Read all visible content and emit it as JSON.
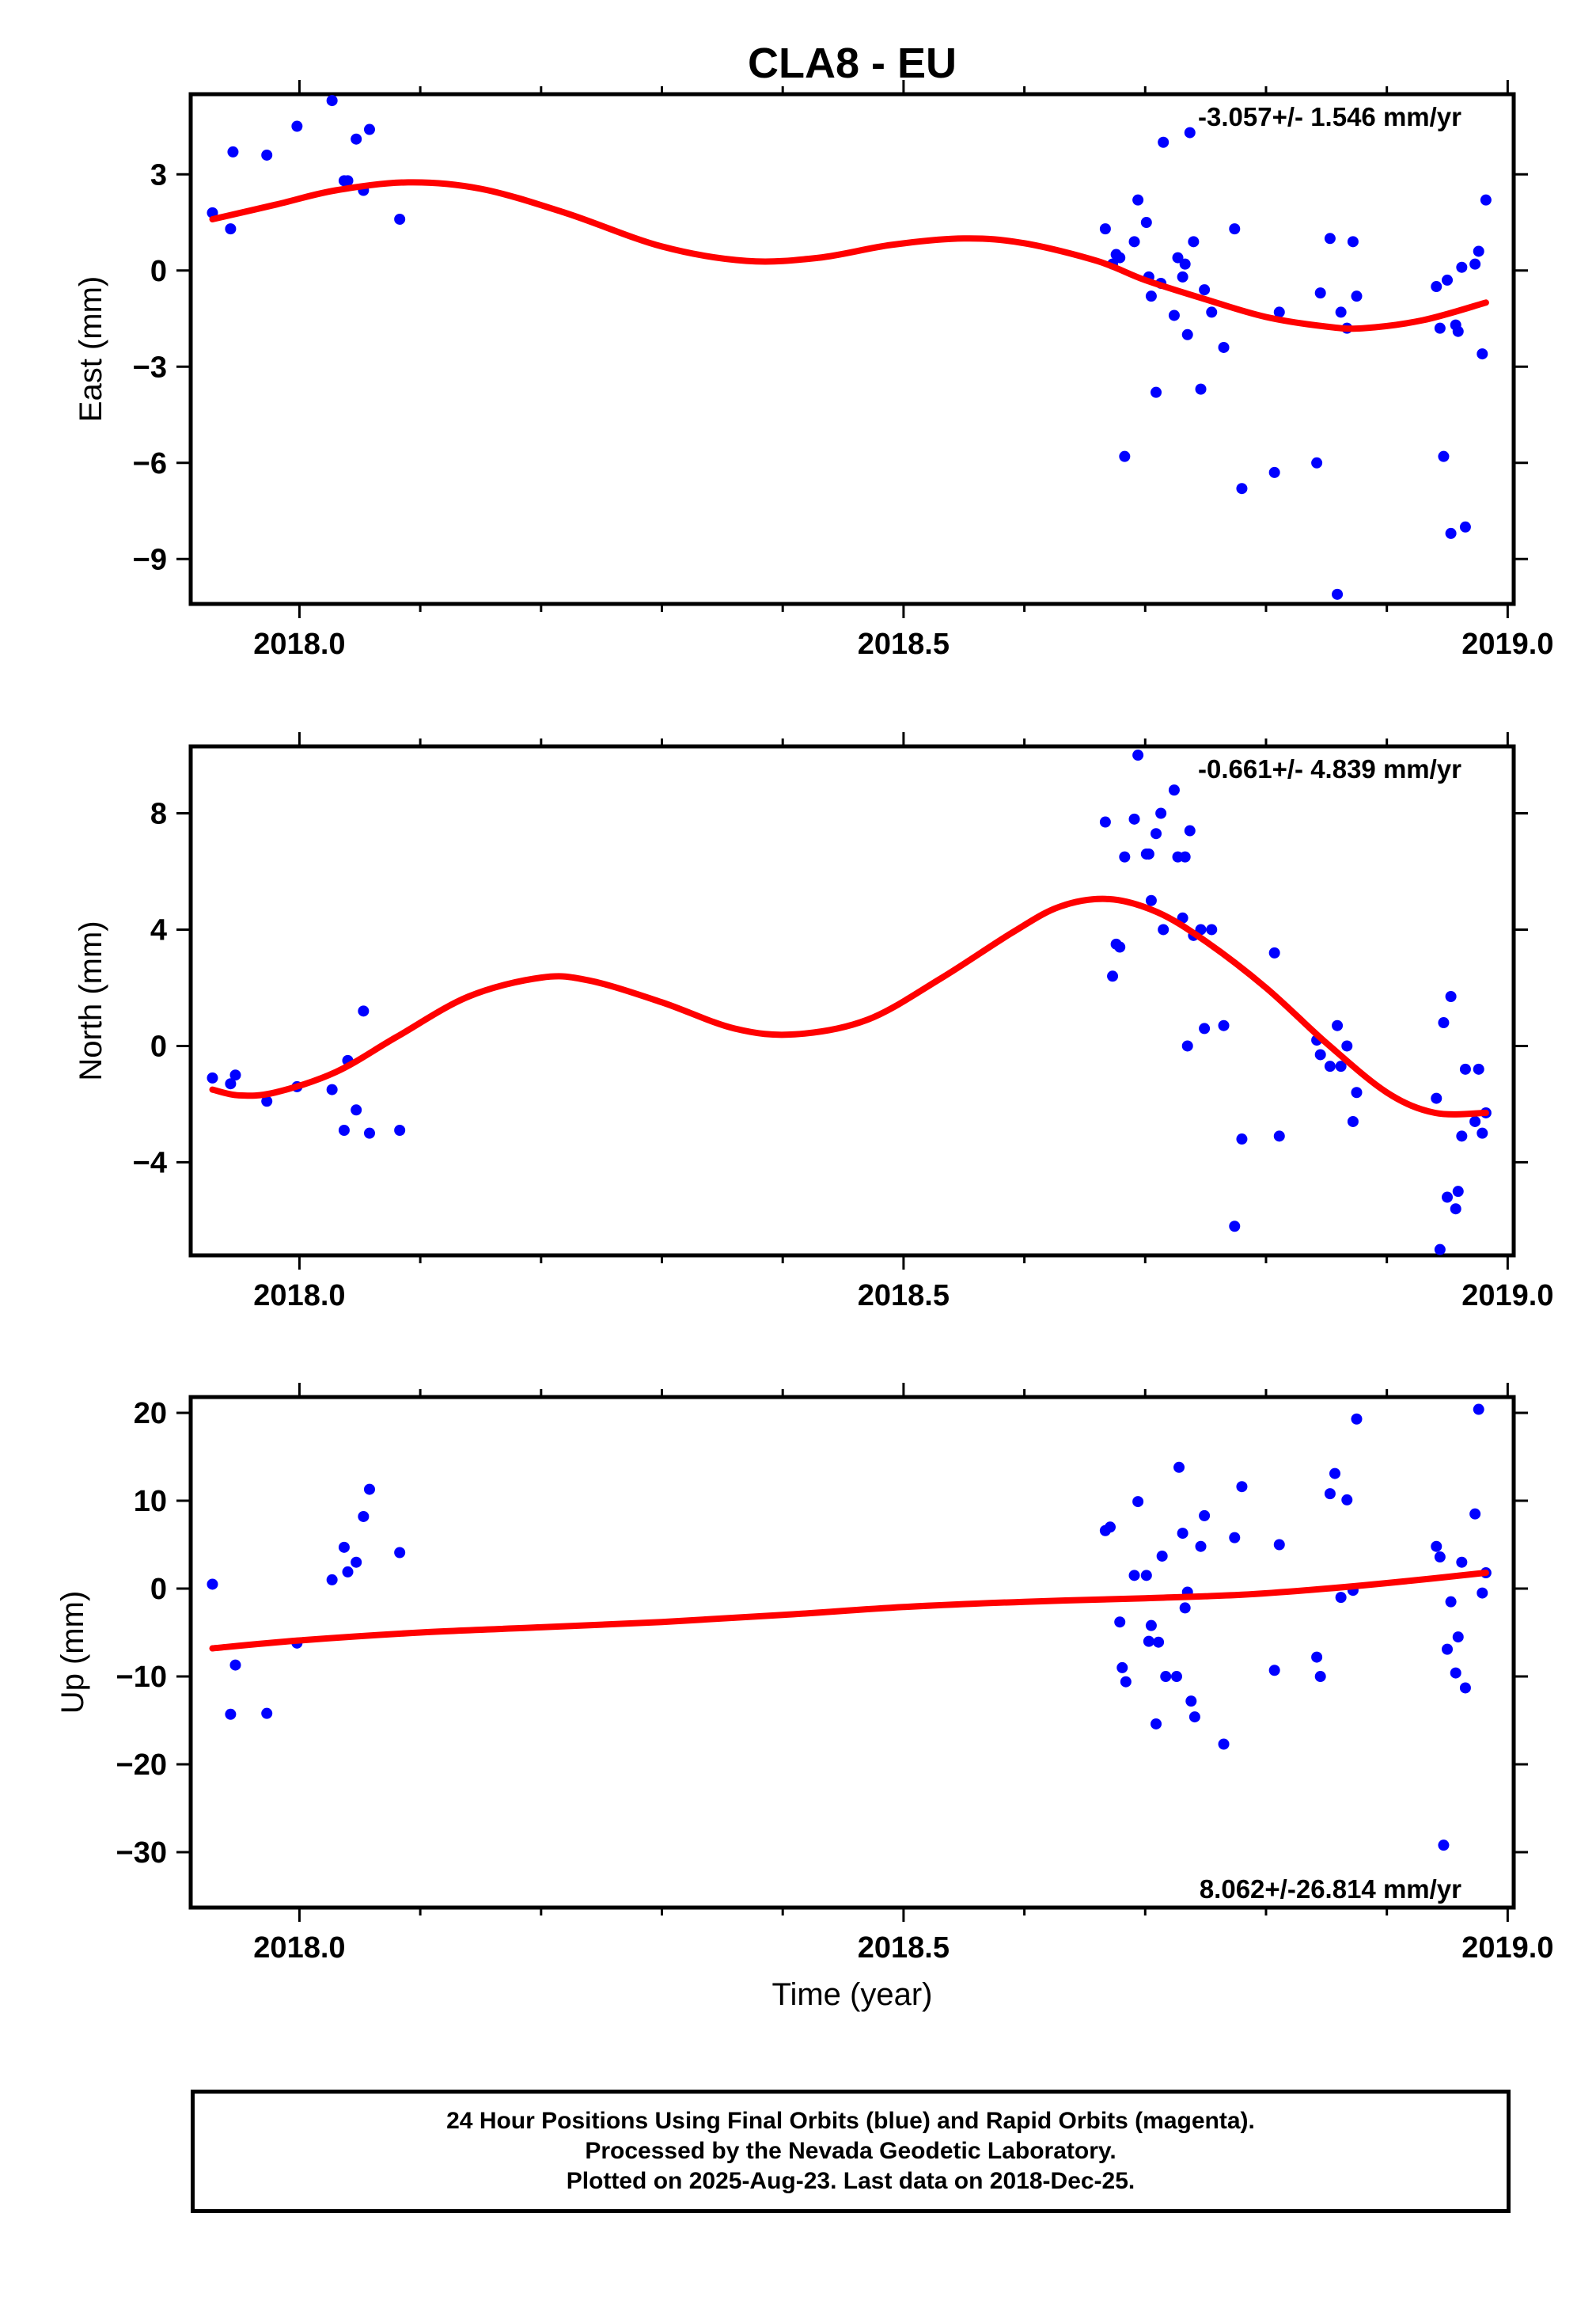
{
  "title": "CLA8 - EU",
  "colors": {
    "points": "#0000ff",
    "fit": "#ff0000",
    "axes": "#000000"
  },
  "xlabel": "Time (year)",
  "x_ticks": [
    "2018.0",
    "2018.5",
    "2019.0"
  ],
  "caption": {
    "line1": "24 Hour Positions Using Final Orbits (blue) and Rapid Orbits (magenta).",
    "line2": "Processed by the Nevada Geodetic Laboratory.",
    "line3": "Plotted on 2025-Aug-23. Last data on 2018-Dec-25."
  },
  "chart_data": [
    {
      "type": "scatter",
      "ylabel": "East (mm)",
      "rate_text": "-3.057+/- 1.546 mm/yr",
      "xlim": [
        2017.91,
        2019.005
      ],
      "ylim": [
        -10.4,
        5.5
      ],
      "yticks": [
        3,
        0,
        -3,
        -6,
        -9
      ],
      "ytick_labels": [
        "3",
        "0",
        "−3",
        "−6",
        "−9"
      ],
      "series": [
        {
          "points": [
            [
              2017.928,
              1.8
            ],
            [
              2017.943,
              1.3
            ],
            [
              2017.945,
              3.7
            ],
            [
              2017.973,
              3.6
            ],
            [
              2017.998,
              4.5
            ],
            [
              2018.027,
              5.3
            ],
            [
              2018.037,
              2.8
            ],
            [
              2018.04,
              2.8
            ],
            [
              2018.047,
              4.1
            ],
            [
              2018.053,
              2.5
            ],
            [
              2018.058,
              4.4
            ],
            [
              2018.083,
              1.6
            ],
            [
              2018.667,
              1.3
            ],
            [
              2018.673,
              0.2
            ],
            [
              2018.676,
              0.5
            ],
            [
              2018.679,
              0.4
            ],
            [
              2018.683,
              -5.8
            ],
            [
              2018.691,
              0.9
            ],
            [
              2018.694,
              2.2
            ],
            [
              2018.701,
              1.5
            ],
            [
              2018.703,
              -0.2
            ],
            [
              2018.705,
              -0.8
            ],
            [
              2018.709,
              -3.8
            ],
            [
              2018.713,
              -0.4
            ],
            [
              2018.715,
              4.0
            ],
            [
              2018.724,
              -1.4
            ],
            [
              2018.727,
              0.4
            ],
            [
              2018.731,
              -0.2
            ],
            [
              2018.733,
              0.2
            ],
            [
              2018.735,
              -2.0
            ],
            [
              2018.737,
              4.3
            ],
            [
              2018.74,
              0.9
            ],
            [
              2018.746,
              -3.7
            ],
            [
              2018.749,
              -0.6
            ],
            [
              2018.755,
              -1.3
            ],
            [
              2018.765,
              -2.4
            ],
            [
              2018.774,
              1.3
            ],
            [
              2018.78,
              -6.8
            ],
            [
              2018.807,
              -6.3
            ],
            [
              2018.811,
              -1.3
            ],
            [
              2018.842,
              -6.0
            ],
            [
              2018.845,
              -0.7
            ],
            [
              2018.853,
              1.0
            ],
            [
              2018.859,
              -10.1
            ],
            [
              2018.862,
              -1.3
            ],
            [
              2018.867,
              -1.8
            ],
            [
              2018.872,
              0.9
            ],
            [
              2018.875,
              -0.8
            ],
            [
              2018.941,
              -0.5
            ],
            [
              2018.944,
              -1.8
            ],
            [
              2018.947,
              -5.8
            ],
            [
              2018.95,
              -0.3
            ],
            [
              2018.953,
              -8.2
            ],
            [
              2018.957,
              -1.7
            ],
            [
              2018.959,
              -1.9
            ],
            [
              2018.962,
              0.1
            ],
            [
              2018.965,
              -8.0
            ],
            [
              2018.973,
              0.2
            ],
            [
              2018.976,
              0.6
            ],
            [
              2018.979,
              -2.6
            ],
            [
              2018.982,
              2.2
            ]
          ]
        },
        {
          "fit": [
            [
              2017.928,
              1.6
            ],
            [
              2017.98,
              2.05
            ],
            [
              2018.03,
              2.5
            ],
            [
              2018.09,
              2.75
            ],
            [
              2018.15,
              2.55
            ],
            [
              2018.22,
              1.8
            ],
            [
              2018.3,
              0.75
            ],
            [
              2018.37,
              0.3
            ],
            [
              2018.43,
              0.4
            ],
            [
              2018.49,
              0.8
            ],
            [
              2018.55,
              1.0
            ],
            [
              2018.6,
              0.85
            ],
            [
              2018.66,
              0.3
            ],
            [
              2018.7,
              -0.3
            ],
            [
              2018.75,
              -0.9
            ],
            [
              2018.8,
              -1.45
            ],
            [
              2018.85,
              -1.75
            ],
            [
              2018.88,
              -1.8
            ],
            [
              2018.93,
              -1.55
            ],
            [
              2018.982,
              -1.0
            ]
          ]
        }
      ]
    },
    {
      "type": "scatter",
      "ylabel": "North (mm)",
      "rate_text": "-0.661+/- 4.839 mm/yr",
      "xlim": [
        2017.91,
        2019.005
      ],
      "ylim": [
        -7.2,
        10.3
      ],
      "yticks": [
        8,
        4,
        0,
        -4
      ],
      "ytick_labels": [
        "8",
        "4",
        "0",
        "−4"
      ],
      "series": [
        {
          "points": [
            [
              2017.928,
              -1.1
            ],
            [
              2017.943,
              -1.3
            ],
            [
              2017.947,
              -1.0
            ],
            [
              2017.973,
              -1.9
            ],
            [
              2017.998,
              -1.4
            ],
            [
              2018.027,
              -1.5
            ],
            [
              2018.037,
              -2.9
            ],
            [
              2018.04,
              -0.5
            ],
            [
              2018.047,
              -2.2
            ],
            [
              2018.053,
              1.2
            ],
            [
              2018.058,
              -3.0
            ],
            [
              2018.083,
              -2.9
            ],
            [
              2018.667,
              7.7
            ],
            [
              2018.673,
              2.4
            ],
            [
              2018.676,
              3.5
            ],
            [
              2018.679,
              3.4
            ],
            [
              2018.683,
              6.5
            ],
            [
              2018.691,
              7.8
            ],
            [
              2018.694,
              10.0
            ],
            [
              2018.701,
              6.6
            ],
            [
              2018.703,
              6.6
            ],
            [
              2018.705,
              5.0
            ],
            [
              2018.709,
              7.3
            ],
            [
              2018.713,
              8.0
            ],
            [
              2018.715,
              4.0
            ],
            [
              2018.724,
              8.8
            ],
            [
              2018.727,
              6.5
            ],
            [
              2018.731,
              4.4
            ],
            [
              2018.733,
              6.5
            ],
            [
              2018.735,
              0.0
            ],
            [
              2018.737,
              7.4
            ],
            [
              2018.74,
              3.8
            ],
            [
              2018.746,
              4.0
            ],
            [
              2018.749,
              0.6
            ],
            [
              2018.755,
              4.0
            ],
            [
              2018.765,
              0.7
            ],
            [
              2018.774,
              -6.2
            ],
            [
              2018.78,
              -3.2
            ],
            [
              2018.807,
              3.2
            ],
            [
              2018.811,
              -3.1
            ],
            [
              2018.842,
              0.2
            ],
            [
              2018.845,
              -0.3
            ],
            [
              2018.853,
              -0.7
            ],
            [
              2018.859,
              0.7
            ],
            [
              2018.862,
              -0.7
            ],
            [
              2018.867,
              0.0
            ],
            [
              2018.872,
              -2.6
            ],
            [
              2018.875,
              -1.6
            ],
            [
              2018.941,
              -1.8
            ],
            [
              2018.944,
              -7.0
            ],
            [
              2018.947,
              0.8
            ],
            [
              2018.95,
              -5.2
            ],
            [
              2018.953,
              1.7
            ],
            [
              2018.957,
              -5.6
            ],
            [
              2018.959,
              -5.0
            ],
            [
              2018.962,
              -3.1
            ],
            [
              2018.965,
              -0.8
            ],
            [
              2018.973,
              -2.6
            ],
            [
              2018.976,
              -0.8
            ],
            [
              2018.979,
              -3.0
            ],
            [
              2018.982,
              -2.3
            ]
          ]
        },
        {
          "fit": [
            [
              2017.928,
              -1.5
            ],
            [
              2017.95,
              -1.7
            ],
            [
              2017.98,
              -1.6
            ],
            [
              2018.03,
              -0.9
            ],
            [
              2018.08,
              0.3
            ],
            [
              2018.14,
              1.7
            ],
            [
              2018.2,
              2.35
            ],
            [
              2018.24,
              2.25
            ],
            [
              2018.3,
              1.5
            ],
            [
              2018.36,
              0.6
            ],
            [
              2018.41,
              0.4
            ],
            [
              2018.47,
              0.9
            ],
            [
              2018.53,
              2.3
            ],
            [
              2018.59,
              3.9
            ],
            [
              2018.63,
              4.8
            ],
            [
              2018.67,
              5.05
            ],
            [
              2018.71,
              4.6
            ],
            [
              2018.75,
              3.6
            ],
            [
              2018.8,
              2.0
            ],
            [
              2018.85,
              0.1
            ],
            [
              2018.9,
              -1.6
            ],
            [
              2018.94,
              -2.3
            ],
            [
              2018.982,
              -2.3
            ]
          ]
        }
      ]
    },
    {
      "type": "scatter",
      "ylabel": "Up (mm)",
      "rate_text": "8.062+/-26.814 mm/yr",
      "xlim": [
        2017.91,
        2019.005
      ],
      "ylim": [
        -36.3,
        21.8
      ],
      "yticks": [
        20,
        10,
        0,
        -10,
        -20,
        -30
      ],
      "ytick_labels": [
        "20",
        "10",
        "0",
        "−10",
        "−20",
        "−30"
      ],
      "series": [
        {
          "points": [
            [
              2017.928,
              0.5
            ],
            [
              2017.943,
              -14.3
            ],
            [
              2017.947,
              -8.7
            ],
            [
              2017.973,
              -14.2
            ],
            [
              2017.998,
              -6.2
            ],
            [
              2018.027,
              1.0
            ],
            [
              2018.037,
              4.7
            ],
            [
              2018.04,
              1.9
            ],
            [
              2018.047,
              3.0
            ],
            [
              2018.053,
              8.2
            ],
            [
              2018.058,
              11.3
            ],
            [
              2018.083,
              4.1
            ],
            [
              2018.667,
              6.6
            ],
            [
              2018.671,
              7.0
            ],
            [
              2018.679,
              -3.8
            ],
            [
              2018.681,
              -9.0
            ],
            [
              2018.684,
              -10.6
            ],
            [
              2018.691,
              1.5
            ],
            [
              2018.694,
              9.9
            ],
            [
              2018.701,
              1.5
            ],
            [
              2018.703,
              -6.0
            ],
            [
              2018.705,
              -4.2
            ],
            [
              2018.709,
              -15.4
            ],
            [
              2018.711,
              -6.1
            ],
            [
              2018.714,
              3.7
            ],
            [
              2018.717,
              -10.0
            ],
            [
              2018.726,
              -10.0
            ],
            [
              2018.728,
              13.8
            ],
            [
              2018.731,
              6.3
            ],
            [
              2018.733,
              -2.2
            ],
            [
              2018.735,
              -0.4
            ],
            [
              2018.738,
              -12.8
            ],
            [
              2018.741,
              -14.6
            ],
            [
              2018.746,
              4.8
            ],
            [
              2018.749,
              8.3
            ],
            [
              2018.765,
              -17.7
            ],
            [
              2018.774,
              5.8
            ],
            [
              2018.78,
              11.6
            ],
            [
              2018.807,
              -9.3
            ],
            [
              2018.811,
              5.0
            ],
            [
              2018.842,
              -7.8
            ],
            [
              2018.845,
              -10.0
            ],
            [
              2018.853,
              10.8
            ],
            [
              2018.857,
              13.1
            ],
            [
              2018.862,
              -1.0
            ],
            [
              2018.867,
              10.1
            ],
            [
              2018.872,
              -0.2
            ],
            [
              2018.875,
              19.3
            ],
            [
              2018.941,
              4.8
            ],
            [
              2018.944,
              3.6
            ],
            [
              2018.947,
              -29.2
            ],
            [
              2018.95,
              -6.9
            ],
            [
              2018.953,
              -1.5
            ],
            [
              2018.957,
              -9.6
            ],
            [
              2018.959,
              -5.5
            ],
            [
              2018.962,
              3.0
            ],
            [
              2018.965,
              -11.3
            ],
            [
              2018.973,
              8.5
            ],
            [
              2018.976,
              20.4
            ],
            [
              2018.979,
              -0.5
            ],
            [
              2018.982,
              1.8
            ]
          ]
        },
        {
          "fit": [
            [
              2017.928,
              -6.8
            ],
            [
              2018.0,
              -5.9
            ],
            [
              2018.1,
              -5.0
            ],
            [
              2018.2,
              -4.4
            ],
            [
              2018.3,
              -3.8
            ],
            [
              2018.4,
              -3.0
            ],
            [
              2018.5,
              -2.1
            ],
            [
              2018.6,
              -1.5
            ],
            [
              2018.7,
              -1.1
            ],
            [
              2018.78,
              -0.7
            ],
            [
              2018.85,
              0.0
            ],
            [
              2018.92,
              0.9
            ],
            [
              2018.982,
              1.8
            ]
          ]
        }
      ]
    }
  ]
}
